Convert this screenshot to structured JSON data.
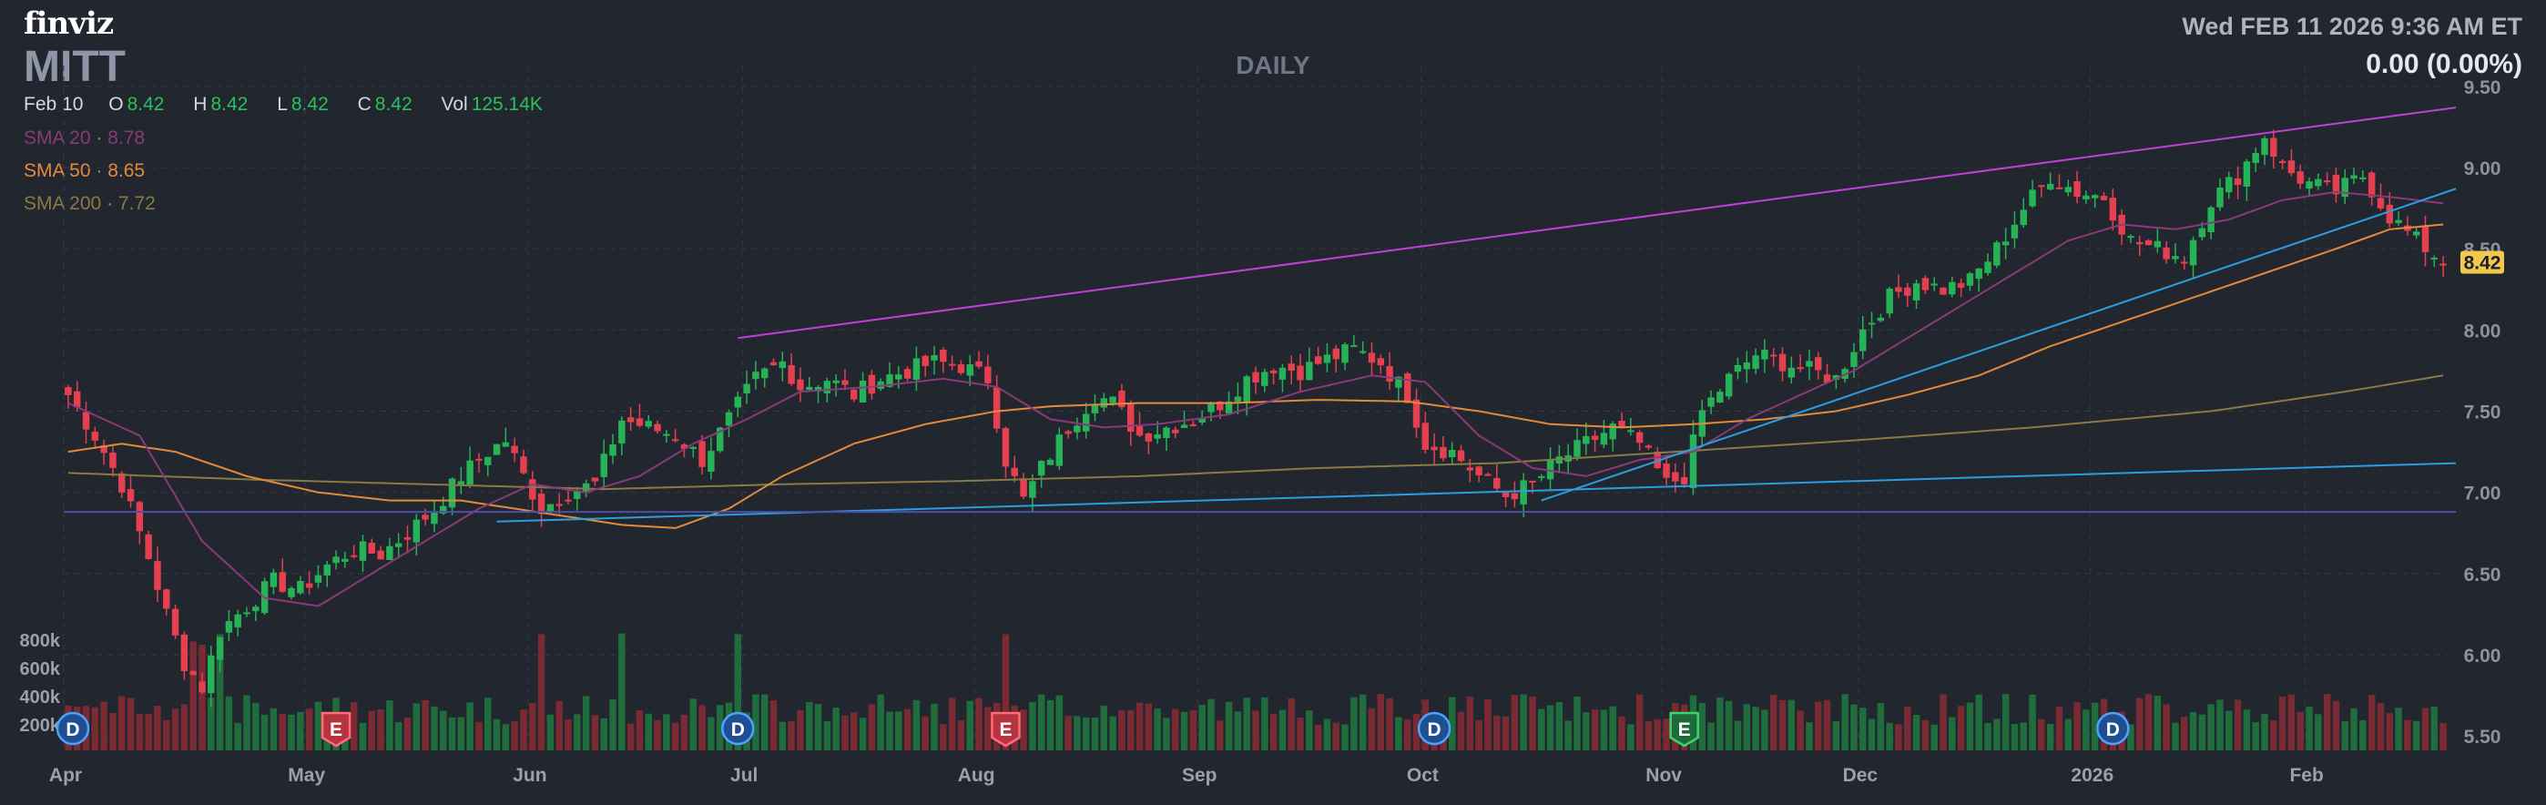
{
  "header": {
    "logo": "finviz",
    "ticker": "MITT",
    "period": "DAILY",
    "datetime": "Wed FEB 11 2026 9:36 AM ET",
    "change": "0.00 (0.00%)"
  },
  "ohlc": {
    "date": "Feb 10",
    "o_label": "O",
    "o": "8.42",
    "h_label": "H",
    "h": "8.42",
    "l_label": "L",
    "l": "8.42",
    "c_label": "C",
    "c": "8.42",
    "vol_label": "Vol",
    "vol": "125.14K"
  },
  "sma_legend": [
    {
      "label": "SMA 20",
      "sep": "·",
      "value": "8.78",
      "color": "#8a3a78"
    },
    {
      "label": "SMA 50",
      "sep": "·",
      "value": "8.65",
      "color": "#e38a3a"
    },
    {
      "label": "SMA 200",
      "sep": "·",
      "value": "7.72",
      "color": "#8a7a45"
    }
  ],
  "colors": {
    "background": "#22262f",
    "up": "#26b256",
    "down": "#e5404f",
    "up_volume": "#1f6d3c",
    "down_volume": "#7a2a33",
    "trendline_upper": "#c040d8",
    "trendline_blue": "#2a9ee0",
    "support_line": "#4a4fa8",
    "last_price_badge": "#f2c94c"
  },
  "chart_data": {
    "type": "candlestick",
    "ylim": [
      5.4,
      9.55
    ],
    "y_ticks": [
      "9.50",
      "9.00",
      "8.50",
      "8.00",
      "7.50",
      "7.00",
      "6.50",
      "6.00",
      "5.50"
    ],
    "x_labels": [
      "Apr",
      "May",
      "Jun",
      "Jul",
      "Aug",
      "Sep",
      "Oct",
      "Nov",
      "Dec",
      "2026",
      "Feb"
    ],
    "volume_ticks": [
      "800k",
      "600k",
      "400k",
      "200k"
    ],
    "last_price": "8.42",
    "close_path": [
      [
        0,
        7.6
      ],
      [
        3,
        7.35
      ],
      [
        6,
        7.05
      ],
      [
        9,
        6.6
      ],
      [
        11,
        6.25
      ],
      [
        13,
        5.95
      ],
      [
        15,
        5.8
      ],
      [
        17,
        6.15
      ],
      [
        20,
        6.3
      ],
      [
        23,
        6.45
      ],
      [
        26,
        6.4
      ],
      [
        29,
        6.55
      ],
      [
        32,
        6.65
      ],
      [
        35,
        6.62
      ],
      [
        38,
        6.75
      ],
      [
        41,
        6.9
      ],
      [
        44,
        7.1
      ],
      [
        47,
        7.25
      ],
      [
        49,
        7.32
      ],
      [
        51,
        7.1
      ],
      [
        53,
        6.9
      ],
      [
        56,
        7.0
      ],
      [
        59,
        7.05
      ],
      [
        62,
        7.45
      ],
      [
        65,
        7.4
      ],
      [
        68,
        7.35
      ],
      [
        71,
        7.2
      ],
      [
        74,
        7.45
      ],
      [
        77,
        7.7
      ],
      [
        80,
        7.8
      ],
      [
        82,
        7.65
      ],
      [
        85,
        7.7
      ],
      [
        88,
        7.6
      ],
      [
        91,
        7.7
      ],
      [
        94,
        7.75
      ],
      [
        97,
        7.8
      ],
      [
        100,
        7.78
      ],
      [
        103,
        7.7
      ],
      [
        105,
        7.2
      ],
      [
        107,
        6.95
      ],
      [
        109,
        7.15
      ],
      [
        112,
        7.4
      ],
      [
        115,
        7.6
      ],
      [
        117,
        7.55
      ],
      [
        120,
        7.35
      ],
      [
        123,
        7.4
      ],
      [
        126,
        7.45
      ],
      [
        129,
        7.55
      ],
      [
        132,
        7.7
      ],
      [
        135,
        7.78
      ],
      [
        138,
        7.75
      ],
      [
        141,
        7.82
      ],
      [
        144,
        7.88
      ],
      [
        147,
        7.8
      ],
      [
        150,
        7.6
      ],
      [
        152,
        7.3
      ],
      [
        155,
        7.25
      ],
      [
        158,
        7.1
      ],
      [
        161,
        6.98
      ],
      [
        164,
        7.05
      ],
      [
        167,
        7.2
      ],
      [
        170,
        7.3
      ],
      [
        173,
        7.4
      ],
      [
        176,
        7.3
      ],
      [
        179,
        7.05
      ],
      [
        181,
        7.1
      ],
      [
        183,
        7.5
      ],
      [
        186,
        7.7
      ],
      [
        189,
        7.85
      ],
      [
        192,
        7.8
      ],
      [
        195,
        7.75
      ],
      [
        198,
        7.7
      ],
      [
        201,
        8.0
      ],
      [
        204,
        8.2
      ],
      [
        207,
        8.3
      ],
      [
        210,
        8.25
      ],
      [
        213,
        8.3
      ],
      [
        216,
        8.5
      ],
      [
        219,
        8.75
      ],
      [
        222,
        8.95
      ],
      [
        225,
        8.85
      ],
      [
        228,
        8.82
      ],
      [
        231,
        8.55
      ],
      [
        234,
        8.5
      ],
      [
        237,
        8.45
      ],
      [
        240,
        8.8
      ],
      [
        243,
        8.95
      ],
      [
        246,
        9.2
      ],
      [
        248,
        9.0
      ],
      [
        251,
        8.9
      ],
      [
        254,
        8.85
      ],
      [
        257,
        8.95
      ],
      [
        260,
        8.7
      ],
      [
        263,
        8.55
      ],
      [
        266,
        8.42
      ]
    ],
    "sma20": [
      [
        0,
        7.55
      ],
      [
        8,
        7.35
      ],
      [
        15,
        6.7
      ],
      [
        22,
        6.35
      ],
      [
        28,
        6.3
      ],
      [
        34,
        6.5
      ],
      [
        40,
        6.7
      ],
      [
        46,
        6.9
      ],
      [
        52,
        7.05
      ],
      [
        58,
        7.0
      ],
      [
        64,
        7.1
      ],
      [
        70,
        7.3
      ],
      [
        76,
        7.45
      ],
      [
        82,
        7.62
      ],
      [
        90,
        7.65
      ],
      [
        98,
        7.7
      ],
      [
        104,
        7.65
      ],
      [
        110,
        7.45
      ],
      [
        116,
        7.4
      ],
      [
        122,
        7.42
      ],
      [
        130,
        7.48
      ],
      [
        138,
        7.62
      ],
      [
        146,
        7.72
      ],
      [
        152,
        7.68
      ],
      [
        158,
        7.35
      ],
      [
        164,
        7.15
      ],
      [
        170,
        7.1
      ],
      [
        176,
        7.2
      ],
      [
        182,
        7.25
      ],
      [
        188,
        7.45
      ],
      [
        194,
        7.6
      ],
      [
        200,
        7.75
      ],
      [
        206,
        7.95
      ],
      [
        212,
        8.15
      ],
      [
        218,
        8.35
      ],
      [
        224,
        8.55
      ],
      [
        230,
        8.65
      ],
      [
        236,
        8.62
      ],
      [
        242,
        8.68
      ],
      [
        248,
        8.8
      ],
      [
        254,
        8.85
      ],
      [
        260,
        8.82
      ],
      [
        266,
        8.78
      ]
    ],
    "sma50": [
      [
        0,
        7.25
      ],
      [
        6,
        7.3
      ],
      [
        12,
        7.25
      ],
      [
        20,
        7.1
      ],
      [
        28,
        7.0
      ],
      [
        36,
        6.95
      ],
      [
        44,
        6.95
      ],
      [
        50,
        6.9
      ],
      [
        56,
        6.85
      ],
      [
        62,
        6.8
      ],
      [
        68,
        6.78
      ],
      [
        74,
        6.9
      ],
      [
        80,
        7.1
      ],
      [
        88,
        7.3
      ],
      [
        96,
        7.42
      ],
      [
        104,
        7.5
      ],
      [
        110,
        7.53
      ],
      [
        120,
        7.55
      ],
      [
        130,
        7.55
      ],
      [
        140,
        7.57
      ],
      [
        150,
        7.56
      ],
      [
        158,
        7.5
      ],
      [
        166,
        7.42
      ],
      [
        174,
        7.4
      ],
      [
        182,
        7.42
      ],
      [
        190,
        7.45
      ],
      [
        198,
        7.5
      ],
      [
        206,
        7.6
      ],
      [
        214,
        7.72
      ],
      [
        222,
        7.9
      ],
      [
        230,
        8.05
      ],
      [
        238,
        8.2
      ],
      [
        246,
        8.35
      ],
      [
        254,
        8.5
      ],
      [
        260,
        8.62
      ],
      [
        266,
        8.65
      ]
    ],
    "sma200": [
      [
        0,
        7.12
      ],
      [
        20,
        7.08
      ],
      [
        40,
        7.05
      ],
      [
        60,
        7.02
      ],
      [
        80,
        7.05
      ],
      [
        100,
        7.07
      ],
      [
        120,
        7.1
      ],
      [
        140,
        7.15
      ],
      [
        160,
        7.18
      ],
      [
        180,
        7.25
      ],
      [
        200,
        7.32
      ],
      [
        220,
        7.4
      ],
      [
        240,
        7.5
      ],
      [
        255,
        7.62
      ],
      [
        266,
        7.72
      ]
    ],
    "trendlines": [
      {
        "name": "upper",
        "from": [
          75,
          7.95
        ],
        "to": [
          266,
          9.37
        ],
        "color": "#c040d8"
      },
      {
        "name": "rising-support",
        "from": [
          165,
          6.95
        ],
        "to": [
          266,
          8.87
        ],
        "color": "#2a9ee0"
      },
      {
        "name": "long-support",
        "from": [
          48,
          6.82
        ],
        "to": [
          266,
          7.18
        ],
        "color": "#2a9ee0"
      },
      {
        "name": "horizontal",
        "from": [
          -1,
          6.88
        ],
        "to": [
          266,
          6.88
        ],
        "color": "#4a4fa8"
      }
    ],
    "events": [
      {
        "label": "D",
        "x": 1,
        "kind": "dividend"
      },
      {
        "label": "E",
        "x": 30,
        "kind": "earnings-down"
      },
      {
        "label": "D",
        "x": 75,
        "kind": "dividend"
      },
      {
        "label": "E",
        "x": 105,
        "kind": "earnings-down"
      },
      {
        "label": "D",
        "x": 153,
        "kind": "dividend"
      },
      {
        "label": "E",
        "x": 181,
        "kind": "earnings-up"
      },
      {
        "label": "D",
        "x": 229,
        "kind": "dividend"
      }
    ],
    "volume_ylim": [
      0,
      900000
    ]
  }
}
